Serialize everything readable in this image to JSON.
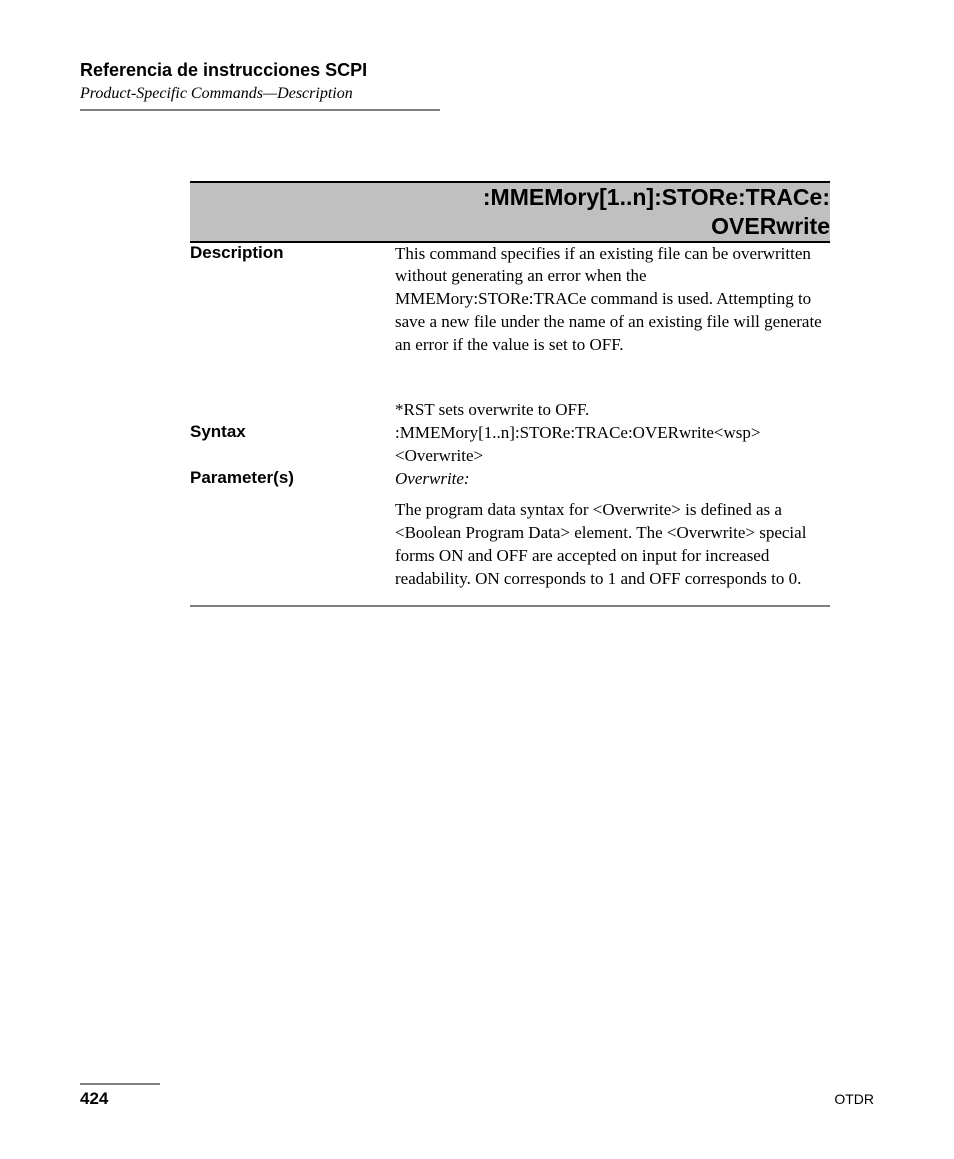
{
  "header": {
    "title": "Referencia de instrucciones SCPI",
    "subtitle": "Product-Specific Commands—Description"
  },
  "command": {
    "title_line1": ":MMEMory[1..n]:STORe:TRACe:",
    "title_line2": "OVERwrite",
    "rows": {
      "description": {
        "label": "Description",
        "para1": "This command specifies if an existing file can be overwritten without generating an error when the MMEMory:STORe:TRACe command is used. Attempting to save a new file under the name of an existing file will generate an error if the value is set to OFF.",
        "para2": "*RST sets overwrite to OFF."
      },
      "syntax": {
        "label": "Syntax",
        "text": ":MMEMory[1..n]:STORe:TRACe:OVERwrite<wsp><Overwrite>"
      },
      "parameters": {
        "label": "Parameter(s)",
        "param_name": "Overwrite:",
        "text": "The program data syntax for <Overwrite> is defined as a <Boolean Program Data> element. The <Overwrite> special forms ON and OFF are accepted on input for increased readability. ON corresponds to 1 and OFF corresponds to 0."
      }
    }
  },
  "footer": {
    "page": "424",
    "doc": "OTDR"
  }
}
